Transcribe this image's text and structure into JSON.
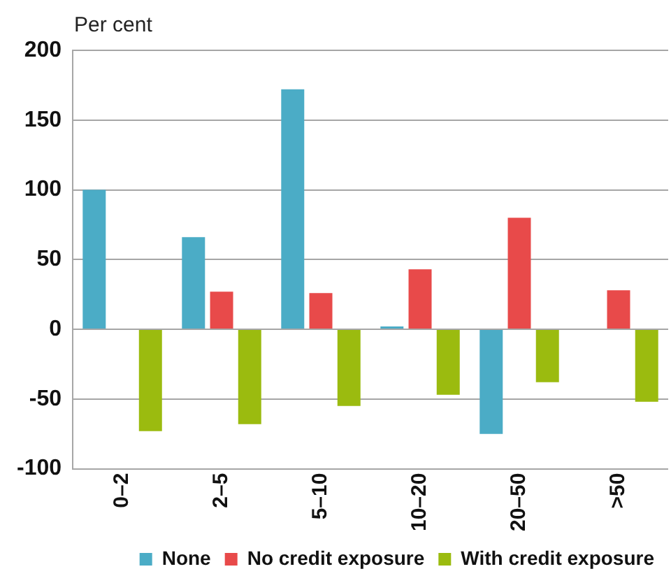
{
  "chart_data": {
    "type": "bar",
    "ylabel": "Per cent",
    "categories": [
      "0–2",
      "2–5",
      "5–10",
      "10–20",
      "20–50",
      ">50"
    ],
    "series": [
      {
        "name": "None",
        "color": "#4bacc6",
        "values": [
          100,
          66,
          172,
          2,
          -75,
          null
        ]
      },
      {
        "name": "No credit exposure",
        "color": "#e84a4a",
        "values": [
          null,
          27,
          26,
          43,
          80,
          28
        ]
      },
      {
        "name": "With credit exposure",
        "color": "#9bbb0f",
        "values": [
          -73,
          -68,
          -55,
          -47,
          -38,
          -52
        ]
      }
    ],
    "ylim": [
      -100,
      200
    ],
    "yticks": [
      -100,
      -50,
      0,
      50,
      100,
      150,
      200
    ],
    "grid": "y",
    "legend": "bottom"
  }
}
